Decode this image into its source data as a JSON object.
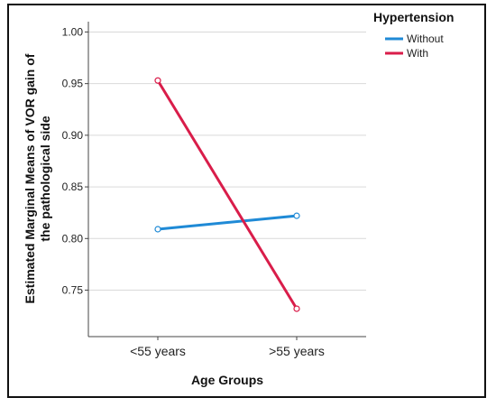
{
  "chart_data": {
    "type": "line",
    "x_tick_labels": [
      "<55 years",
      ">55 years"
    ],
    "xlabel": "Age Groups",
    "ylabel_lines": [
      "Estimated Marginal Means of VOR gain of",
      "the pathological side"
    ],
    "ylim": [
      0.705,
      1.01
    ],
    "yticks": [
      "0.75",
      "0.80",
      "0.85",
      "0.90",
      "0.95",
      "1.00"
    ],
    "grid": true,
    "legend": {
      "title": "Hypertension",
      "position": "top-right"
    },
    "series": [
      {
        "name": "Without",
        "color": "#1f8ad6",
        "values": [
          0.809,
          0.822
        ]
      },
      {
        "name": "With",
        "color": "#d91d4a",
        "values": [
          0.953,
          0.732
        ]
      }
    ]
  }
}
